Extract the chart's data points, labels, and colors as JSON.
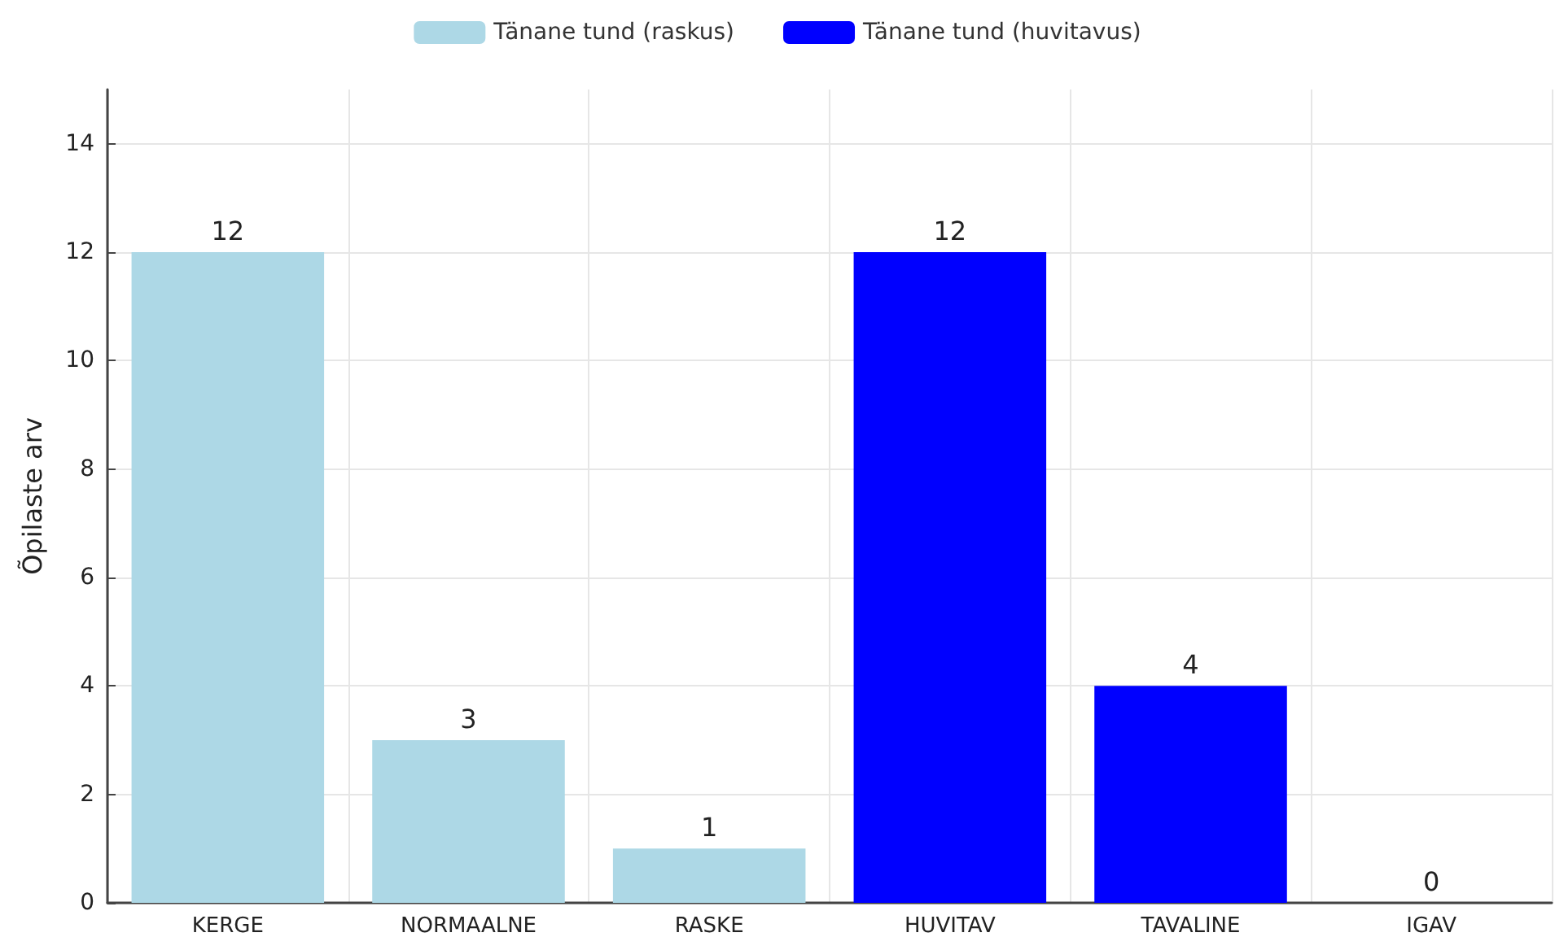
{
  "chart_data": {
    "type": "bar",
    "ylabel": "Õpilaste arv",
    "categories": [
      "KERGE",
      "NORMAALNE",
      "RASKE",
      "HUVITAV",
      "TAVALINE",
      "IGAV"
    ],
    "series": [
      {
        "name": "Tänane tund (raskus)",
        "color": "#add8e6",
        "values": [
          12,
          3,
          1,
          null,
          null,
          null
        ]
      },
      {
        "name": "Tänane tund (huvitavus)",
        "color": "#0000ff",
        "values": [
          null,
          null,
          null,
          12,
          4,
          0
        ]
      }
    ],
    "ylim": [
      0,
      15
    ],
    "yticks": [
      0,
      2,
      4,
      6,
      8,
      10,
      12,
      14
    ],
    "grid": true,
    "legend": "top",
    "data_labels": true
  }
}
